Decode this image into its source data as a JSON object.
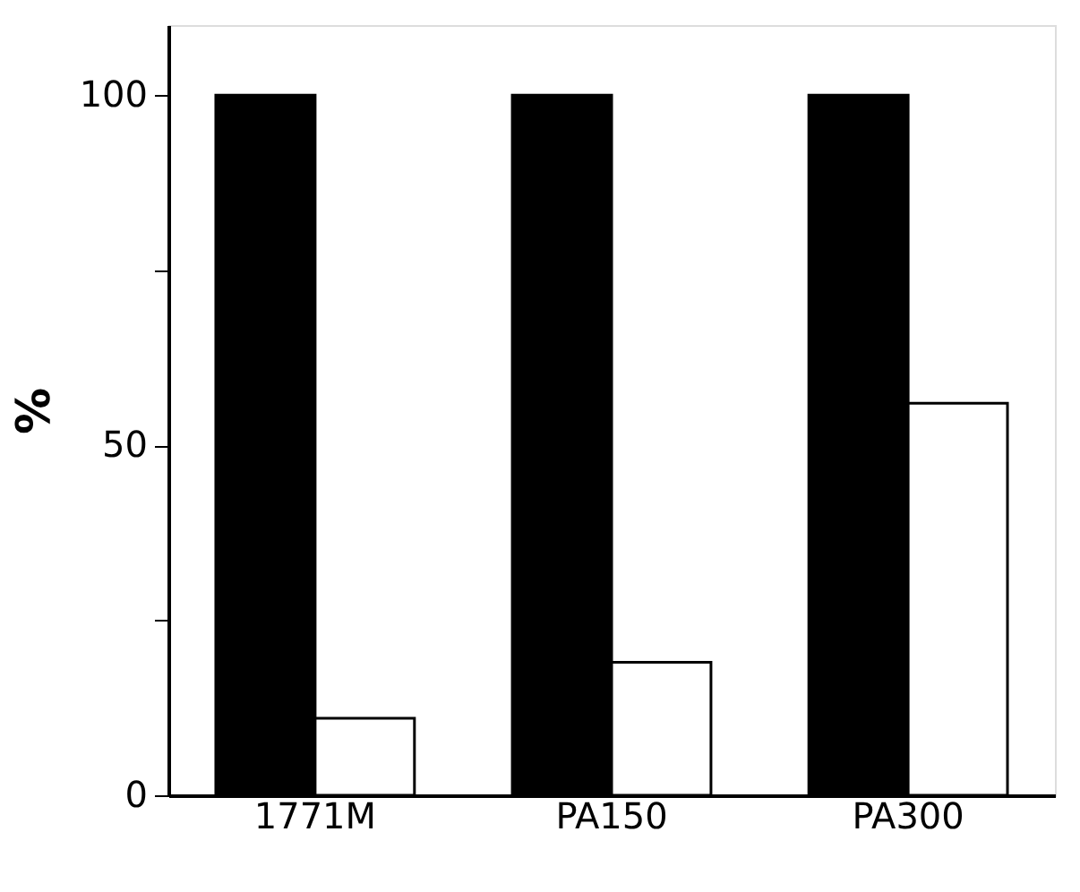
{
  "chart_data": {
    "type": "bar",
    "ylabel": "%",
    "categories": [
      "1771M",
      "PA150",
      "PA300"
    ],
    "series": [
      {
        "color": "#000000",
        "values": [
          100,
          100,
          100
        ]
      },
      {
        "color": "#ffffff",
        "values": [
          11,
          19,
          56
        ]
      }
    ],
    "ylim": [
      0,
      110
    ],
    "yticks": [
      0,
      {
        "value": 25,
        "label": null
      },
      50,
      {
        "value": 75,
        "label": null
      },
      100
    ],
    "grid": false,
    "legend": false
  }
}
